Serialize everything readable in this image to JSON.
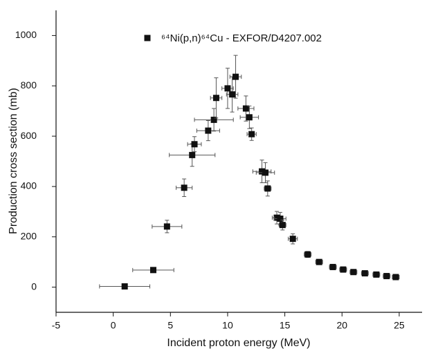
{
  "chart_data": {
    "type": "scatter",
    "x_label": "Incident proton energy (MeV)",
    "y_label": "Production cross section (mb)",
    "xlim": [
      -5,
      27
    ],
    "ylim": [
      -100,
      1100
    ],
    "xticks": [
      -5,
      0,
      5,
      10,
      15,
      20,
      25
    ],
    "yticks": [
      0,
      200,
      400,
      600,
      800,
      1000
    ],
    "legend": "top",
    "series": [
      {
        "name": "⁶⁴Ni(p,n)⁶⁴Cu - EXFOR/D4207.002",
        "color": "#111111",
        "x": [
          1.0,
          3.5,
          4.7,
          6.2,
          6.9,
          7.1,
          8.3,
          8.8,
          9.0,
          10.0,
          10.4,
          10.7,
          11.6,
          11.9,
          12.1,
          13.0,
          13.3,
          13.5,
          14.3,
          14.6,
          14.8,
          15.7,
          17.0,
          18.0,
          19.2,
          20.1,
          21.0,
          22.0,
          23.0,
          23.9,
          24.7
        ],
        "values": [
          3,
          68,
          241,
          395,
          525,
          568,
          622,
          665,
          752,
          790,
          766,
          836,
          710,
          675,
          608,
          460,
          455,
          392,
          276,
          272,
          247,
          192,
          130,
          100,
          80,
          70,
          60,
          55,
          50,
          44,
          40
        ],
        "xerr": [
          2.2,
          1.8,
          1.3,
          0.7,
          2.0,
          0.6,
          1.0,
          1.7,
          0.5,
          0.5,
          0.5,
          0.5,
          0.7,
          0.8,
          0.4,
          0.8,
          0.8,
          0.3,
          0.4,
          0.5,
          0.3,
          0.4,
          0.3,
          0.3,
          0.3,
          0.3,
          0.3,
          0.3,
          0.3,
          0.3,
          0.3
        ],
        "yerr": [
          5,
          8,
          25,
          35,
          45,
          30,
          40,
          45,
          80,
          80,
          70,
          85,
          50,
          45,
          25,
          45,
          40,
          30,
          25,
          25,
          20,
          20,
          12,
          10,
          8,
          6,
          5,
          5,
          5,
          5,
          5
        ]
      }
    ]
  }
}
